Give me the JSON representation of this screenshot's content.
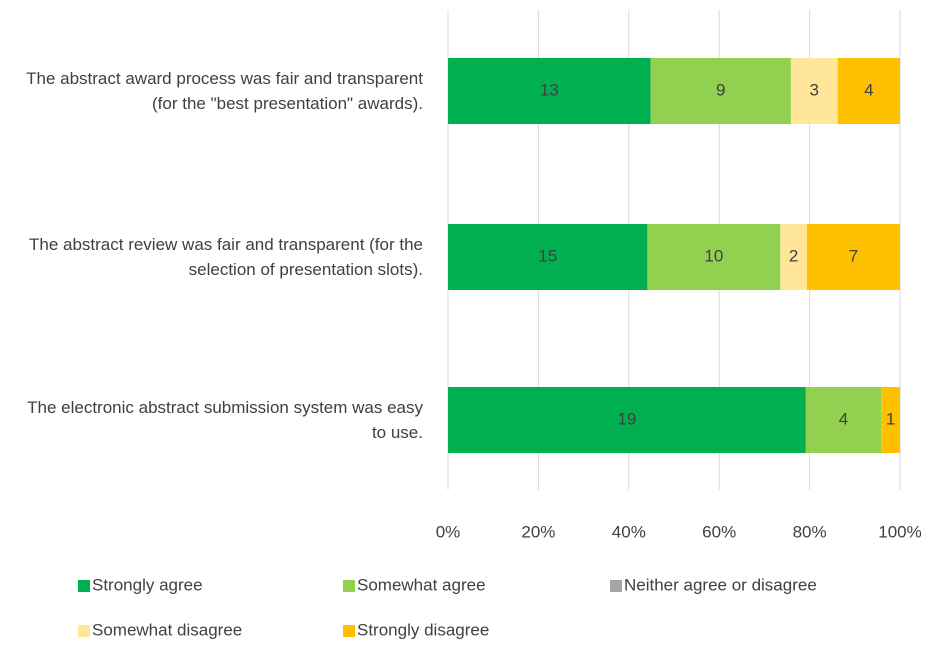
{
  "chart_data": {
    "type": "stacked_bar_horizontal_percent",
    "categories": [
      "The abstract award process was fair and transparent (for the \"best presentation\" awards).",
      "The abstract review was fair and transparent (for the selection of presentation slots).",
      "The electronic abstract submission system was easy to use."
    ],
    "series": [
      {
        "name": "Strongly agree",
        "color": "#00b050",
        "values": [
          13,
          15,
          19
        ]
      },
      {
        "name": "Somewhat agree",
        "color": "#92d050",
        "values": [
          9,
          10,
          4
        ]
      },
      {
        "name": "Neither agree or disagree",
        "color": "#a5a5a5",
        "values": [
          0,
          0,
          0
        ]
      },
      {
        "name": "Somewhat disagree",
        "color": "#ffe699",
        "values": [
          3,
          2,
          0
        ]
      },
      {
        "name": "Strongly disagree",
        "color": "#ffc000",
        "values": [
          4,
          7,
          1
        ]
      }
    ],
    "xlim": [
      0,
      100
    ],
    "xticks": [
      {
        "value": 0,
        "label": "0%"
      },
      {
        "value": 20,
        "label": "20%"
      },
      {
        "value": 40,
        "label": "40%"
      },
      {
        "value": 60,
        "label": "60%"
      },
      {
        "value": 80,
        "label": "80%"
      },
      {
        "value": 100,
        "label": "100%"
      }
    ],
    "grid": true,
    "legend": "bottom"
  }
}
